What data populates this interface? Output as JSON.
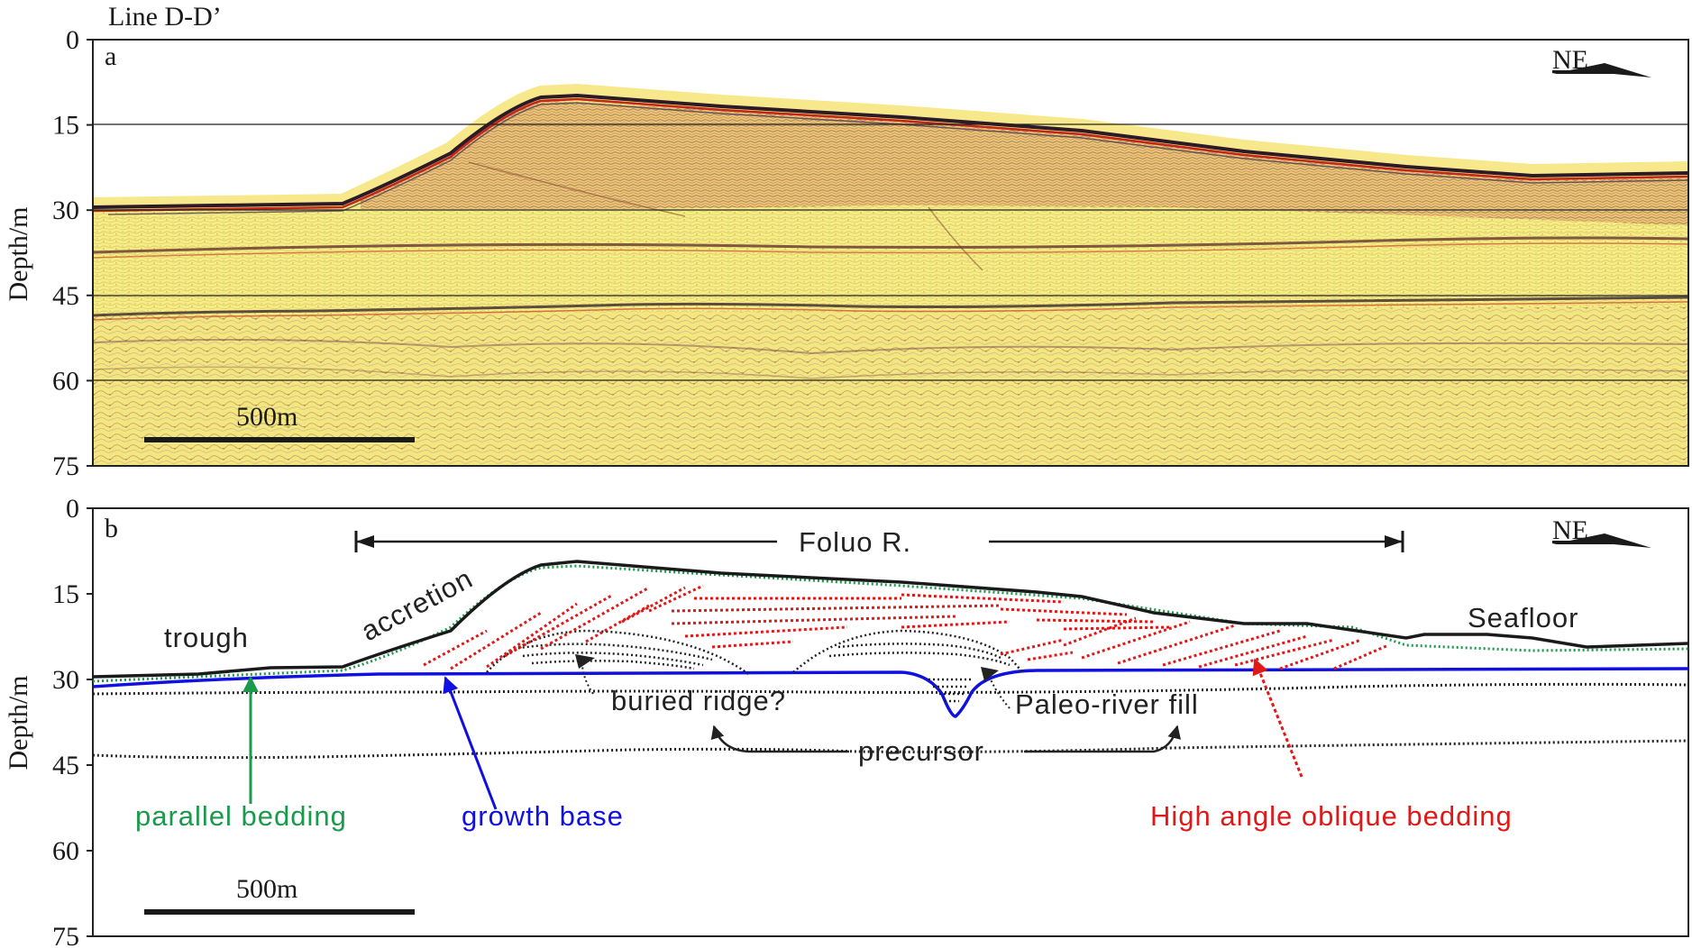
{
  "title": "Line D-D’",
  "axis": {
    "ylabel": "Depth/m",
    "yticks": [
      "0",
      "15",
      "30",
      "45",
      "60",
      "75"
    ],
    "ylim": [
      0,
      75
    ]
  },
  "direction": "NE",
  "scale_bar": "500m",
  "panels": {
    "a": {
      "letter": "a"
    },
    "b": {
      "letter": "b"
    }
  },
  "annotations": {
    "river": "Foluo R.",
    "trough": "trough",
    "accretion": "accretion",
    "seafloor": "Seafloor",
    "buried_ridge": "buried ridge?",
    "paleo_river_fill": "Paleo-river fill",
    "precursor": "precursor",
    "parallel_bedding": "parallel bedding",
    "growth_base": "growth base",
    "high_angle": "High angle oblique bedding"
  },
  "colors": {
    "parallel_bedding": "#1a9a4a",
    "growth_base": "#1010e0",
    "high_angle": "#e01818",
    "seafloor": "#222222",
    "seismic_bg": "#f6ec7c"
  }
}
